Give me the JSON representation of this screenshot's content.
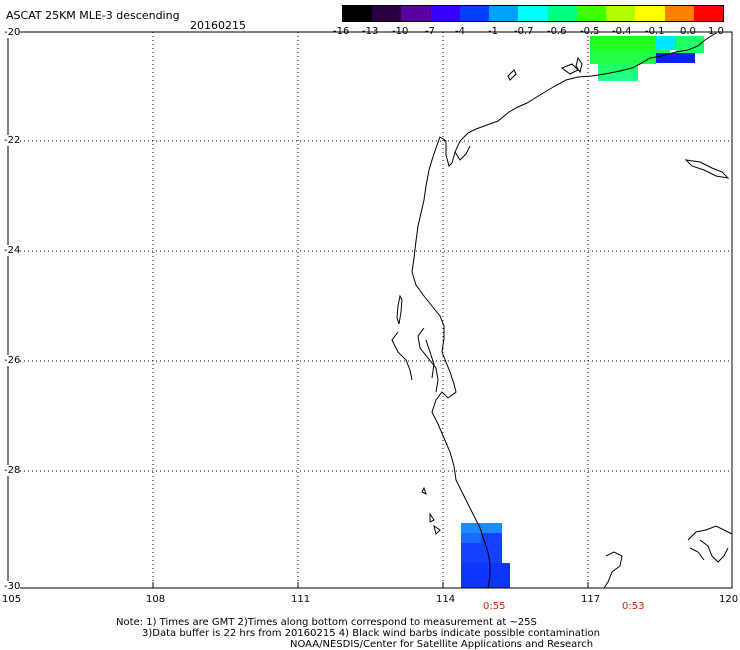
{
  "header": {
    "title": "ASCAT 25KM MLE-3 descending",
    "date": "20160215"
  },
  "colorbar": {
    "labels": [
      "-16",
      "-13",
      "-10",
      "-7",
      "-4",
      "-1",
      "-0.7",
      "-0.6",
      "-0.5",
      "-0.4",
      "-0.1",
      "0.0",
      "1.0"
    ],
    "colors": [
      "#000000",
      "#2b0040",
      "#5a00a0",
      "#3a00ff",
      "#0040ff",
      "#00a0ff",
      "#00ffff",
      "#00ff80",
      "#40ff00",
      "#b0ff00",
      "#ffff00",
      "#ff8000",
      "#ff0000"
    ]
  },
  "map": {
    "lat_labels": [
      "-20",
      "-22",
      "-24",
      "-26",
      "-28",
      "-30"
    ],
    "lon_labels": [
      "105",
      "108",
      "111",
      "114",
      "117",
      "120"
    ],
    "pass_times": [
      "0:55",
      "0:53"
    ],
    "lat_range": [
      -30,
      -20
    ],
    "lon_range": [
      105,
      120
    ]
  },
  "footer": {
    "line1": "Note: 1) Times are GMT 2)Times along bottom correspond to measurement at ~25S",
    "line2": "3)Data buffer is 22 hrs from 20160215 4) Black wind barbs indicate possible contamination",
    "line3": "NOAA/NESDIS/Center for Satellite Applications and Research"
  }
}
